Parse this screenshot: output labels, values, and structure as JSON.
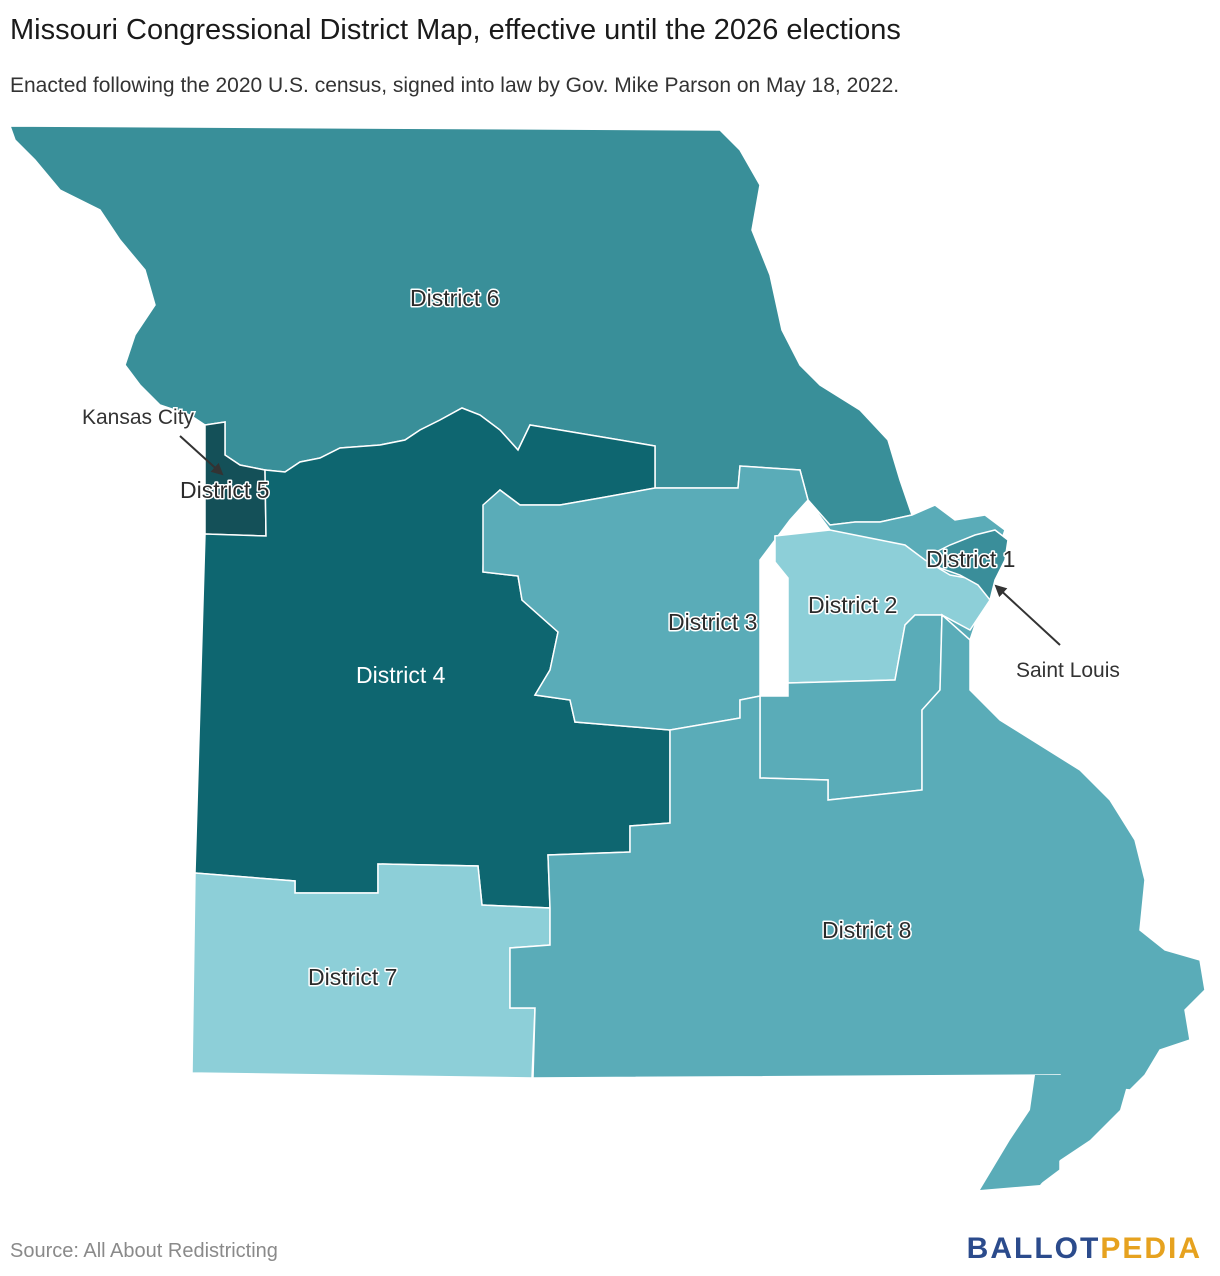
{
  "header": {
    "title": "Missouri Congressional District Map, effective until the 2026 elections",
    "subtitle": "Enacted following the 2020 U.S. census, signed into law by Gov. Mike Parson on May 18, 2022."
  },
  "districts": [
    {
      "id": "d1",
      "label": "District 1",
      "color": "#3a8e9a"
    },
    {
      "id": "d2",
      "label": "District 2",
      "color": "#8dcfd8"
    },
    {
      "id": "d3",
      "label": "District 3",
      "color": "#5aacb8"
    },
    {
      "id": "d4",
      "label": "District 4",
      "color": "#0e6670"
    },
    {
      "id": "d5",
      "label": "District 5",
      "color": "#145058"
    },
    {
      "id": "d6",
      "label": "District 6",
      "color": "#398f99"
    },
    {
      "id": "d7",
      "label": "District 7",
      "color": "#8dcfd8"
    },
    {
      "id": "d8",
      "label": "District 8",
      "color": "#5aacb8"
    }
  ],
  "cities": {
    "kansas_city": "Kansas City",
    "saint_louis": "Saint Louis"
  },
  "footer": {
    "source": "Source: All About Redistricting",
    "logo_part1": "BALLOT",
    "logo_part2": "PEDIA"
  }
}
